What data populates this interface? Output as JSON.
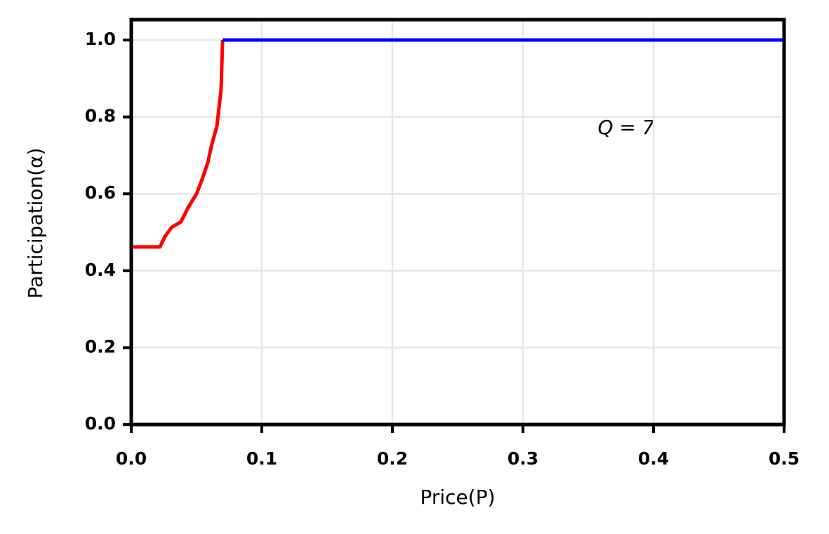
{
  "chart_data": {
    "type": "line",
    "x_label": "Price(P)",
    "y_label": "Participation(α)",
    "annotation": "Q = 7",
    "xlim": [
      0,
      0.5
    ],
    "ylim": [
      0,
      1.053
    ],
    "xticks": [
      {
        "value": 0,
        "label": "0.0"
      },
      0.1,
      0.2,
      0.3,
      0.4,
      0.5
    ],
    "yticks": [
      {
        "value": 0,
        "label": "0.0"
      },
      0.2,
      0.4,
      0.6,
      0.8,
      {
        "value": 1,
        "label": "1.0"
      }
    ],
    "grid": true,
    "series": [
      {
        "color": "#ff0000",
        "x": [
          0,
          0.022,
          0.0258,
          0.031,
          0.038,
          0.0435,
          0.05,
          0.0538,
          0.0586,
          0.0618,
          0.0656,
          0.0688,
          0.0699,
          0.07
        ],
        "values": [
          0.462,
          0.462,
          0.489,
          0.513,
          0.527,
          0.564,
          0.6,
          0.633,
          0.681,
          0.73,
          0.776,
          0.872,
          0.995,
          1.0
        ]
      },
      {
        "color": "#0000ff",
        "x": [
          0.07,
          0.5
        ],
        "values": [
          1.0,
          1.0
        ]
      }
    ]
  }
}
